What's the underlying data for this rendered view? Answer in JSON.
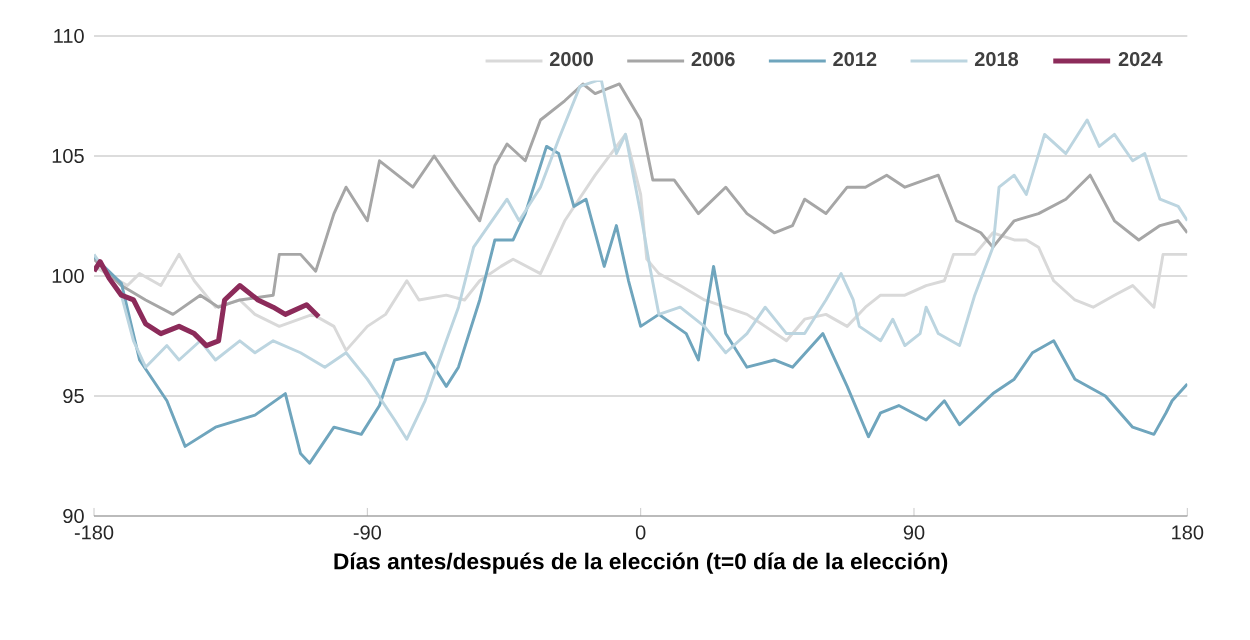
{
  "chart_data": {
    "type": "line",
    "xlabel": "Días antes/después de la elección (t=0 día de la elección)",
    "xlim": [
      -180,
      180
    ],
    "xticks": [
      -180,
      -90,
      0,
      90,
      180
    ],
    "ylim": [
      90,
      110
    ],
    "yticks": [
      90,
      95,
      100,
      105,
      110
    ],
    "grid": "y",
    "legend": "top right",
    "line_style": "solid",
    "marker": "none",
    "series": [
      {
        "name": "2000",
        "color": "#d9d9d9",
        "x": [
          -180,
          -169,
          -165,
          -158,
          -152,
          -147,
          -140,
          -132,
          -127,
          -119,
          -108,
          -101,
          -97,
          -90,
          -84,
          -77,
          -73,
          -64,
          -58,
          -53,
          -46,
          -42,
          -33,
          -25,
          -15,
          -5,
          0,
          2,
          6,
          13,
          21,
          28,
          35,
          41,
          48,
          54,
          61,
          68,
          74,
          79,
          87,
          94,
          100,
          103,
          110,
          116,
          123,
          127,
          131,
          136,
          143,
          149,
          156,
          162,
          169,
          172,
          180
        ],
        "values": [
          100.4,
          99.6,
          100.1,
          99.6,
          100.9,
          99.8,
          98.7,
          99.0,
          98.4,
          97.9,
          98.4,
          97.9,
          96.9,
          97.9,
          98.4,
          99.8,
          99.0,
          99.2,
          99.0,
          99.8,
          100.4,
          100.7,
          100.1,
          102.3,
          104.2,
          105.9,
          103.4,
          100.7,
          100.1,
          99.6,
          99.0,
          98.7,
          98.4,
          97.9,
          97.3,
          98.2,
          98.4,
          97.9,
          98.7,
          99.2,
          99.2,
          99.6,
          99.8,
          100.9,
          100.9,
          101.8,
          101.5,
          101.5,
          101.2,
          99.8,
          99.0,
          98.7,
          99.2,
          99.6,
          98.7,
          100.9,
          100.9
        ]
      },
      {
        "name": "2006",
        "color": "#a6a6a6",
        "x": [
          -180,
          -171,
          -163,
          -154,
          -145,
          -139,
          -132,
          -121,
          -119,
          -112,
          -107,
          -101,
          -97,
          -90,
          -86,
          -75,
          -68,
          -61,
          -53,
          -48,
          -44,
          -38,
          -33,
          -25,
          -19,
          -15,
          -7,
          0,
          4,
          11,
          19,
          28,
          35,
          44,
          50,
          54,
          61,
          68,
          74,
          81,
          87,
          98,
          104,
          112,
          116,
          123,
          131,
          140,
          148,
          156,
          164,
          171,
          177,
          180
        ],
        "values": [
          100.7,
          99.6,
          99.0,
          98.4,
          99.2,
          98.7,
          99.0,
          99.2,
          100.9,
          100.9,
          100.2,
          102.6,
          103.7,
          102.3,
          104.8,
          103.7,
          105.0,
          103.7,
          102.3,
          104.6,
          105.5,
          104.8,
          106.5,
          107.3,
          108.0,
          107.6,
          108.0,
          106.5,
          104.0,
          104.0,
          102.6,
          103.7,
          102.6,
          101.8,
          102.1,
          103.2,
          102.6,
          103.7,
          103.7,
          104.2,
          103.7,
          104.2,
          102.3,
          101.8,
          101.2,
          102.3,
          102.6,
          103.2,
          104.2,
          102.3,
          101.5,
          102.1,
          102.3,
          101.8
        ]
      },
      {
        "name": "2012",
        "color": "#6fa5bd",
        "x": [
          -180,
          -171,
          -165,
          -156,
          -150,
          -140,
          -127,
          -117,
          -112,
          -109,
          -101,
          -92,
          -86,
          -81,
          -71,
          -64,
          -60,
          -53,
          -48,
          -42,
          -38,
          -31,
          -27,
          -22,
          -18,
          -12,
          -8,
          -4,
          0,
          6,
          15,
          19,
          24,
          28,
          35,
          44,
          50,
          60,
          68,
          75,
          79,
          85,
          94,
          100,
          105,
          116,
          123,
          129,
          136,
          143,
          153,
          162,
          169,
          173,
          175,
          180
        ],
        "values": [
          100.8,
          99.7,
          96.5,
          94.8,
          92.9,
          93.7,
          94.2,
          95.1,
          92.6,
          92.2,
          93.7,
          93.4,
          94.6,
          96.5,
          96.8,
          95.4,
          96.2,
          99.0,
          101.5,
          101.5,
          102.6,
          105.4,
          105.1,
          102.9,
          103.2,
          100.4,
          102.1,
          99.8,
          97.9,
          98.4,
          97.6,
          96.5,
          100.4,
          97.6,
          96.2,
          96.5,
          96.2,
          97.6,
          95.4,
          93.3,
          94.3,
          94.6,
          94.0,
          94.8,
          93.8,
          95.1,
          95.7,
          96.8,
          97.3,
          95.7,
          95.0,
          93.7,
          93.4,
          94.3,
          94.8,
          95.5
        ]
      },
      {
        "name": "2018",
        "color": "#bcd5e0",
        "x": [
          -180,
          -171,
          -167,
          -163,
          -156,
          -152,
          -145,
          -140,
          -132,
          -127,
          -121,
          -112,
          -104,
          -97,
          -90,
          -81,
          -77,
          -71,
          -64,
          -60,
          -55,
          -44,
          -40,
          -33,
          -27,
          -20,
          -13,
          -8,
          -5,
          0,
          3,
          6,
          13,
          21,
          28,
          35,
          41,
          48,
          54,
          61,
          66,
          70,
          72,
          79,
          83,
          87,
          92,
          94,
          98,
          105,
          110,
          116,
          118,
          123,
          127,
          133,
          140,
          147,
          151,
          156,
          162,
          166,
          171,
          177,
          180
        ],
        "values": [
          100.9,
          99.2,
          97.3,
          96.2,
          97.1,
          96.5,
          97.3,
          96.5,
          97.3,
          96.8,
          97.3,
          96.8,
          96.2,
          96.8,
          95.7,
          94.0,
          93.2,
          94.8,
          97.3,
          98.7,
          101.2,
          103.2,
          102.3,
          103.7,
          105.7,
          107.9,
          108.2,
          105.1,
          105.9,
          102.6,
          100.4,
          98.4,
          98.7,
          97.9,
          96.8,
          97.6,
          98.7,
          97.6,
          97.6,
          99.0,
          100.1,
          99.0,
          97.9,
          97.3,
          98.2,
          97.1,
          97.6,
          98.7,
          97.6,
          97.1,
          99.2,
          101.2,
          103.7,
          104.2,
          103.4,
          105.9,
          105.1,
          106.5,
          105.4,
          105.9,
          104.8,
          105.1,
          103.2,
          102.9,
          102.3
        ]
      },
      {
        "name": "2024",
        "color": "#8c2b5a",
        "x": [
          -180,
          -178,
          -175,
          -171,
          -167,
          -163,
          -158,
          -152,
          -147,
          -143,
          -139,
          -137,
          -132,
          -126,
          -121,
          -117,
          -110,
          -106
        ],
        "values": [
          100.2,
          100.6,
          99.9,
          99.2,
          99.0,
          98.0,
          97.6,
          97.9,
          97.6,
          97.1,
          97.3,
          99.0,
          99.6,
          99.0,
          98.7,
          98.4,
          98.8,
          98.3
        ]
      }
    ]
  }
}
